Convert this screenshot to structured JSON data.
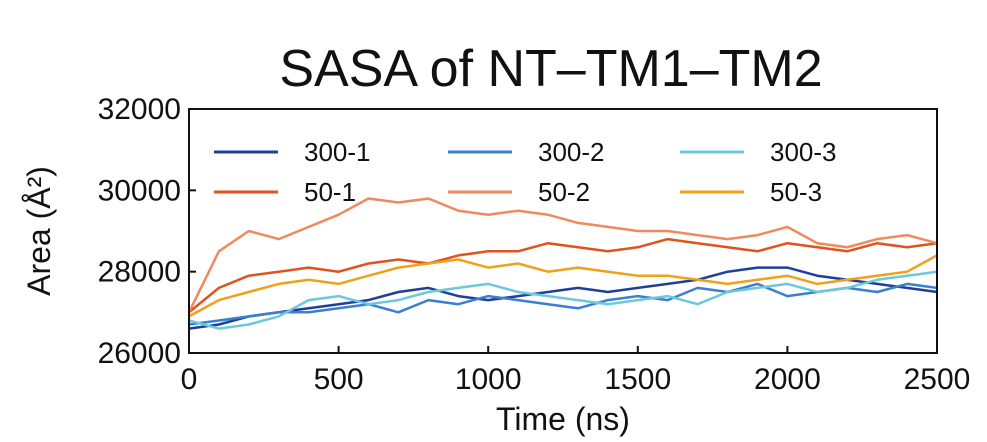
{
  "chart_data": {
    "type": "line",
    "title": "SASA of NT–TM1–TM2",
    "xlabel": "Time (ns)",
    "ylabel": "Area (Å²)",
    "xlim": [
      0,
      2500
    ],
    "ylim": [
      26000,
      32000
    ],
    "xticks": [
      0,
      500,
      1000,
      1500,
      2000,
      2500
    ],
    "yticks": [
      26000,
      28000,
      30000,
      32000
    ],
    "xtick_labels": [
      "0",
      "500",
      "1000",
      "1500",
      "2000",
      "2500"
    ],
    "ytick_labels": [
      "26000",
      "28000",
      "30000",
      "32000"
    ],
    "grid": false,
    "legend_position": "top",
    "series": [
      {
        "name": "300-1",
        "color": "#1f3f99",
        "x": [
          0,
          100,
          200,
          300,
          400,
          500,
          600,
          700,
          800,
          900,
          1000,
          1100,
          1200,
          1300,
          1400,
          1500,
          1600,
          1700,
          1800,
          1900,
          2000,
          2100,
          2200,
          2300,
          2400,
          2500
        ],
        "y": [
          26600,
          26700,
          26900,
          27000,
          27100,
          27200,
          27300,
          27500,
          27600,
          27400,
          27300,
          27400,
          27500,
          27600,
          27500,
          27600,
          27700,
          27800,
          28000,
          28100,
          28100,
          27900,
          27800,
          27700,
          27600,
          27500
        ]
      },
      {
        "name": "300-2",
        "color": "#3a7fd0",
        "x": [
          0,
          100,
          200,
          300,
          400,
          500,
          600,
          700,
          800,
          900,
          1000,
          1100,
          1200,
          1300,
          1400,
          1500,
          1600,
          1700,
          1800,
          1900,
          2000,
          2100,
          2200,
          2300,
          2400,
          2500
        ],
        "y": [
          26700,
          26800,
          26900,
          27000,
          27000,
          27100,
          27200,
          27000,
          27300,
          27200,
          27400,
          27300,
          27200,
          27100,
          27300,
          27400,
          27300,
          27600,
          27500,
          27700,
          27400,
          27500,
          27600,
          27500,
          27700,
          27600
        ]
      },
      {
        "name": "300-3",
        "color": "#6cc9dc",
        "x": [
          0,
          100,
          200,
          300,
          400,
          500,
          600,
          700,
          800,
          900,
          1000,
          1100,
          1200,
          1300,
          1400,
          1500,
          1600,
          1700,
          1800,
          1900,
          2000,
          2100,
          2200,
          2300,
          2400,
          2500
        ],
        "y": [
          26800,
          26600,
          26700,
          26900,
          27300,
          27400,
          27200,
          27300,
          27500,
          27600,
          27700,
          27500,
          27400,
          27300,
          27200,
          27300,
          27400,
          27200,
          27500,
          27600,
          27700,
          27500,
          27600,
          27800,
          27900,
          28000
        ]
      },
      {
        "name": "50-1",
        "color": "#e0531e",
        "x": [
          0,
          100,
          200,
          300,
          400,
          500,
          600,
          700,
          800,
          900,
          1000,
          1100,
          1200,
          1300,
          1400,
          1500,
          1600,
          1700,
          1800,
          1900,
          2000,
          2100,
          2200,
          2300,
          2400,
          2500
        ],
        "y": [
          27000,
          27600,
          27900,
          28000,
          28100,
          28000,
          28200,
          28300,
          28200,
          28400,
          28500,
          28500,
          28700,
          28600,
          28500,
          28600,
          28800,
          28700,
          28600,
          28500,
          28700,
          28600,
          28500,
          28700,
          28600,
          28700
        ]
      },
      {
        "name": "50-2",
        "color": "#ee8a5c",
        "x": [
          0,
          100,
          200,
          300,
          400,
          500,
          600,
          700,
          800,
          900,
          1000,
          1100,
          1200,
          1300,
          1400,
          1500,
          1600,
          1700,
          1800,
          1900,
          2000,
          2100,
          2200,
          2300,
          2400,
          2500
        ],
        "y": [
          27000,
          28500,
          29000,
          28800,
          29100,
          29400,
          29800,
          29700,
          29800,
          29500,
          29400,
          29500,
          29400,
          29200,
          29100,
          29000,
          29000,
          28900,
          28800,
          28900,
          29100,
          28700,
          28600,
          28800,
          28900,
          28700
        ]
      },
      {
        "name": "50-3",
        "color": "#f0a11a",
        "x": [
          0,
          100,
          200,
          300,
          400,
          500,
          600,
          700,
          800,
          900,
          1000,
          1100,
          1200,
          1300,
          1400,
          1500,
          1600,
          1700,
          1800,
          1900,
          2000,
          2100,
          2200,
          2300,
          2400,
          2500
        ],
        "y": [
          26900,
          27300,
          27500,
          27700,
          27800,
          27700,
          27900,
          28100,
          28200,
          28300,
          28100,
          28200,
          28000,
          28100,
          28000,
          27900,
          27900,
          27800,
          27700,
          27800,
          27900,
          27700,
          27800,
          27900,
          28000,
          28400
        ]
      }
    ]
  }
}
